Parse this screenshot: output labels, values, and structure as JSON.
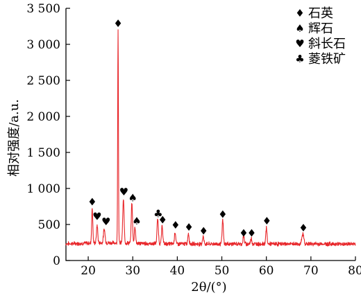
{
  "chart_data": {
    "type": "line",
    "title": "",
    "xlabel": "2θ/(°)",
    "ylabel": "相对强度/a.u.",
    "xlim": [
      15,
      80
    ],
    "ylim": [
      0,
      3500
    ],
    "x_ticks": [
      20,
      30,
      40,
      50,
      60,
      70,
      80
    ],
    "y_ticks": [
      0,
      500,
      1000,
      1500,
      2000,
      2500,
      3000,
      3500
    ],
    "y_tick_labels": [
      "0",
      "500",
      "1 000",
      "1 500",
      "2 000",
      "2 500",
      "3 000",
      "3 500"
    ],
    "grid": false,
    "legend_position": "top-right",
    "line_color": "#e8262a",
    "baseline": 230,
    "peaks": [
      {
        "x": 20.9,
        "y": 720,
        "width": 0.18
      },
      {
        "x": 22.0,
        "y": 480,
        "width": 0.2
      },
      {
        "x": 23.6,
        "y": 420,
        "width": 0.25
      },
      {
        "x": 26.7,
        "y": 3200,
        "width": 0.12
      },
      {
        "x": 27.9,
        "y": 830,
        "width": 0.22
      },
      {
        "x": 29.8,
        "y": 800,
        "width": 0.2
      },
      {
        "x": 30.5,
        "y": 460,
        "width": 0.2
      },
      {
        "x": 35.6,
        "y": 570,
        "width": 0.22
      },
      {
        "x": 36.6,
        "y": 480,
        "width": 0.2
      },
      {
        "x": 39.5,
        "y": 400,
        "width": 0.2
      },
      {
        "x": 42.5,
        "y": 380,
        "width": 0.2
      },
      {
        "x": 45.8,
        "y": 340,
        "width": 0.2
      },
      {
        "x": 50.2,
        "y": 560,
        "width": 0.2
      },
      {
        "x": 54.9,
        "y": 340,
        "width": 0.2
      },
      {
        "x": 56.6,
        "y": 310,
        "width": 0.2
      },
      {
        "x": 60.0,
        "y": 450,
        "width": 0.2
      },
      {
        "x": 68.2,
        "y": 370,
        "width": 0.3
      }
    ],
    "annotations": [
      {
        "x": 20.9,
        "y": 820,
        "marker": "♦",
        "phase": "石英"
      },
      {
        "x": 22.0,
        "y": 620,
        "marker": "♥",
        "phase": "斜长石"
      },
      {
        "x": 24.0,
        "y": 550,
        "marker": "♥",
        "phase": "斜长石"
      },
      {
        "x": 26.7,
        "y": 3300,
        "marker": "♦",
        "phase": "石英"
      },
      {
        "x": 28.0,
        "y": 960,
        "marker": "♥",
        "phase": "斜长石"
      },
      {
        "x": 30.0,
        "y": 880,
        "marker": "♠",
        "phase": "辉石"
      },
      {
        "x": 30.9,
        "y": 560,
        "marker": "♠",
        "phase": "辉石"
      },
      {
        "x": 35.7,
        "y": 660,
        "marker": "♣",
        "phase": "菱铁矿"
      },
      {
        "x": 36.7,
        "y": 570,
        "marker": "♦",
        "phase": "石英"
      },
      {
        "x": 39.6,
        "y": 500,
        "marker": "♦",
        "phase": "石英"
      },
      {
        "x": 42.6,
        "y": 470,
        "marker": "♦",
        "phase": "石英"
      },
      {
        "x": 45.9,
        "y": 420,
        "marker": "♦",
        "phase": "石英"
      },
      {
        "x": 50.2,
        "y": 650,
        "marker": "♦",
        "phase": "石英"
      },
      {
        "x": 54.9,
        "y": 390,
        "marker": "♦",
        "phase": "石英"
      },
      {
        "x": 56.7,
        "y": 390,
        "marker": "♦",
        "phase": "石英"
      },
      {
        "x": 60.1,
        "y": 560,
        "marker": "♦",
        "phase": "石英"
      },
      {
        "x": 68.3,
        "y": 460,
        "marker": "♦",
        "phase": "石英"
      }
    ],
    "legend": [
      {
        "marker": "♦",
        "label": "石英"
      },
      {
        "marker": "♠",
        "label": "辉石"
      },
      {
        "marker": "♥",
        "label": "斜长石"
      },
      {
        "marker": "♣",
        "label": "菱铁矿"
      }
    ]
  }
}
